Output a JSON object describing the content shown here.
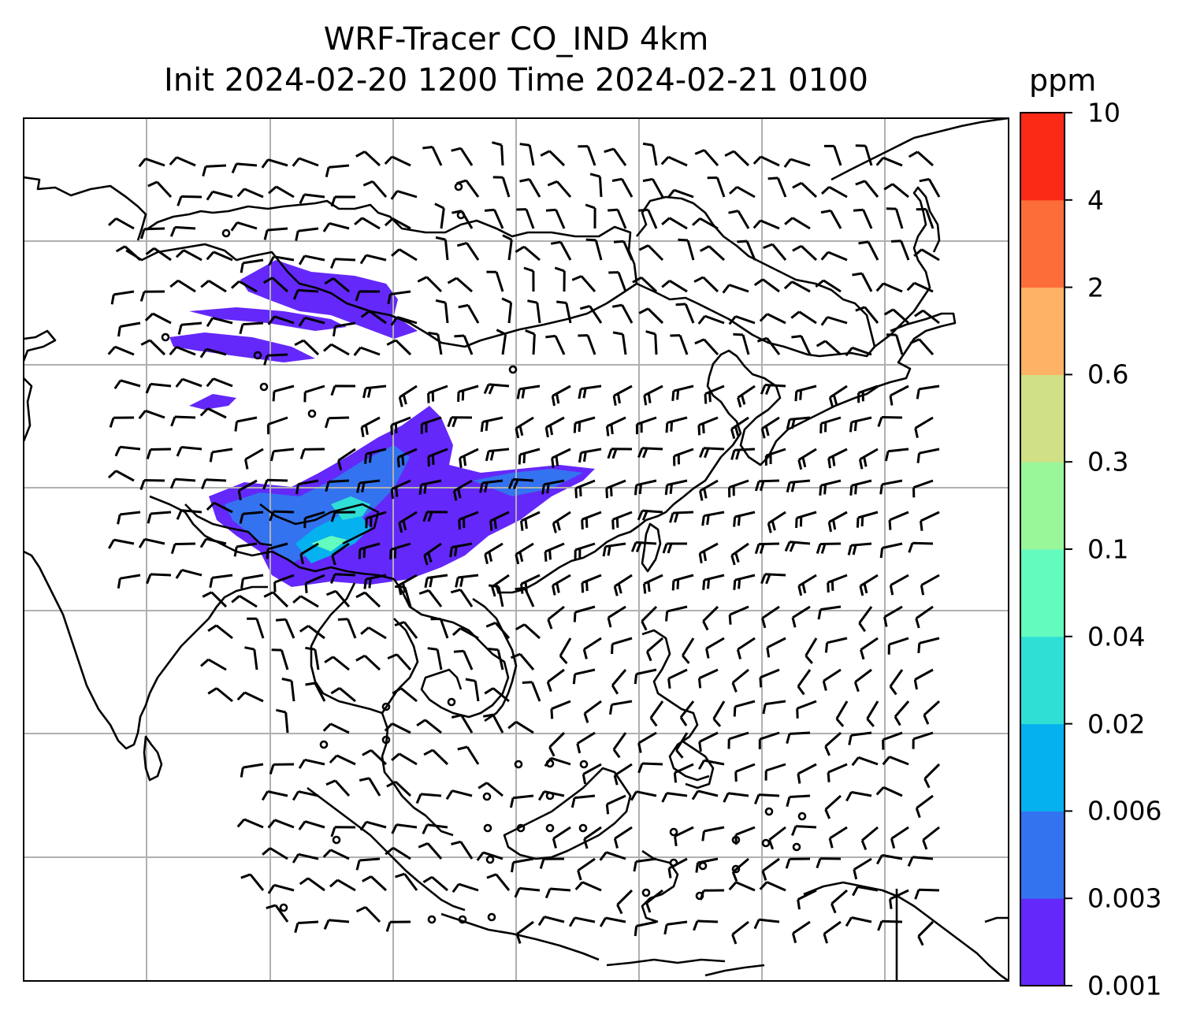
{
  "title": {
    "line1": "WRF-Tracer CO_IND 4km",
    "line2": "Init 2024-02-20 1200 Time 2024-02-21 0100"
  },
  "colorbar": {
    "unit": "ppm",
    "levels": [
      "0.001",
      "0.003",
      "0.006",
      "0.02",
      "0.04",
      "0.1",
      "0.3",
      "0.6",
      "2",
      "4",
      "10"
    ],
    "colors": [
      "#6428fa",
      "#3373f0",
      "#05b1ee",
      "#2fdfd6",
      "#63fbbe",
      "#99f699",
      "#cfe085",
      "#fdb265",
      "#fd6d3a",
      "#fb2a17"
    ]
  },
  "map": {
    "coastline_color": "#000000",
    "gridline_color": "#b0b0b0",
    "barb_color": "#000000"
  }
}
